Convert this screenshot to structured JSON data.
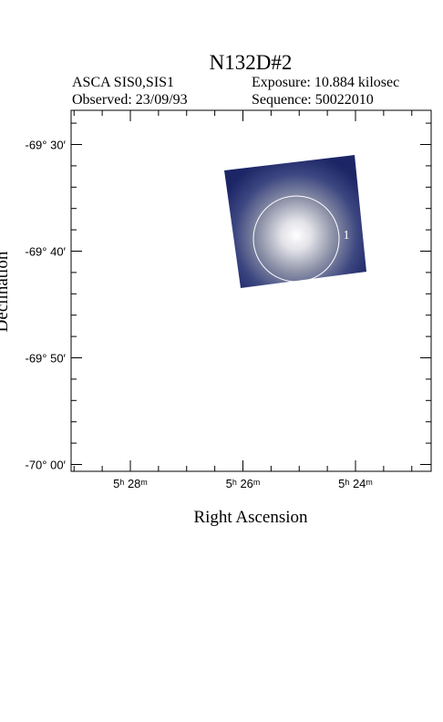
{
  "header": {
    "title": "N132D#2",
    "instrument": "ASCA SIS0,SIS1",
    "exposure": "Exposure: 10.884 kilosec",
    "observed": "Observed: 23/09/93",
    "sequence": "Sequence: 50022010"
  },
  "axes": {
    "x_label": "Right Ascension",
    "y_label": "Declination",
    "x_tick_labels": [
      "5ʰ 28ᵐ",
      "5ʰ 26ᵐ",
      "5ʰ 24ᵐ"
    ],
    "y_tick_labels": [
      "-69° 30′",
      "-69° 40′",
      "-69° 50′",
      "-70° 00′"
    ]
  },
  "sources": [
    {
      "label": "1"
    }
  ]
}
